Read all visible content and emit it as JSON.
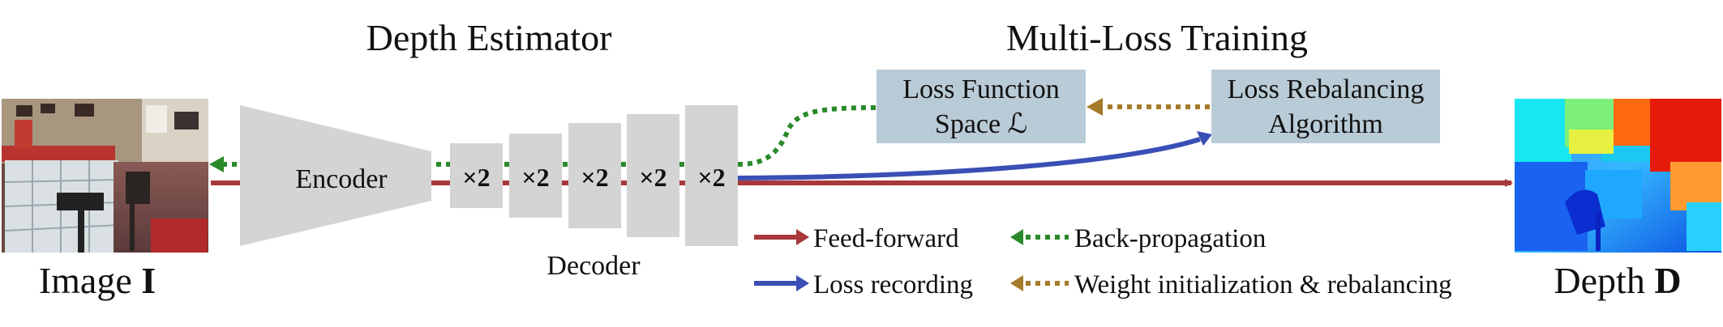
{
  "titles": {
    "depth_estimator": "Depth Estimator",
    "multi_loss": "Multi-Loss Training"
  },
  "encoder_label": "Encoder",
  "decoder_label": "Decoder",
  "upsample_label": "×2",
  "upsample_blocks": [
    {
      "label": "×2"
    },
    {
      "label": "×2"
    },
    {
      "label": "×2"
    },
    {
      "label": "×2"
    },
    {
      "label": "×2"
    }
  ],
  "loss_space": {
    "line1": "Loss Function",
    "line2": "Space ℒ"
  },
  "rebalancing": {
    "line1": "Loss Rebalancing",
    "line2": "Algorithm"
  },
  "input_caption": {
    "prefix": "Image ",
    "symbol": "I"
  },
  "output_caption": {
    "prefix": "Depth ",
    "symbol": "D"
  },
  "legend": {
    "feed_forward": "Feed-forward",
    "back_propagation": "Back-propagation",
    "loss_recording": "Loss recording",
    "weight_init": "Weight initialization & rebalancing"
  },
  "colors": {
    "feed_forward": "#a8383a",
    "back_propagation": "#2a8a2a",
    "loss_recording": "#3a4fb5",
    "weight_init": "#a57a2a",
    "box_fill": "#b9cbd6",
    "block_fill": "#d4d4d4"
  },
  "images": {
    "input": "indoor-room-photo",
    "output": "depth-heatmap"
  }
}
